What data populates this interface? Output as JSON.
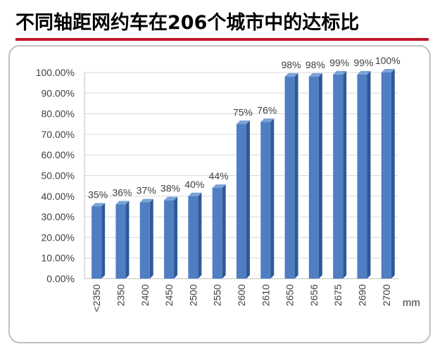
{
  "title": "不同轴距网约车在206个城市中的达标比",
  "colors": {
    "title_rule": "#c0182a",
    "bar_front": "#4f7ec3",
    "bar_side": "#2d5a96",
    "bar_top": "#7aa3d8",
    "gridline": "#d9d9d9",
    "axis": "#bfbfbf"
  },
  "chart_data": {
    "type": "bar",
    "title": "不同轴距网约车在206个城市中的达标比",
    "xlabel": "mm",
    "ylabel": "",
    "ylim": [
      0,
      1
    ],
    "y_ticks": [
      "0.00%",
      "10.00%",
      "20.00%",
      "30.00%",
      "40.00%",
      "50.00%",
      "60.00%",
      "70.00%",
      "80.00%",
      "90.00%",
      "100.00%"
    ],
    "categories": [
      "<2350",
      "2350",
      "2400",
      "2450",
      "2500",
      "2550",
      "2600",
      "2610",
      "2650",
      "2656",
      "2675",
      "2690",
      "2700"
    ],
    "values": [
      0.35,
      0.36,
      0.37,
      0.38,
      0.4,
      0.44,
      0.75,
      0.76,
      0.98,
      0.98,
      0.99,
      0.99,
      1.0
    ],
    "data_labels": [
      "35%",
      "36%",
      "37%",
      "38%",
      "40%",
      "44%",
      "75%",
      "76%",
      "98%",
      "98%",
      "99%",
      "99%",
      "100%"
    ],
    "grid": true,
    "legend": "none"
  }
}
